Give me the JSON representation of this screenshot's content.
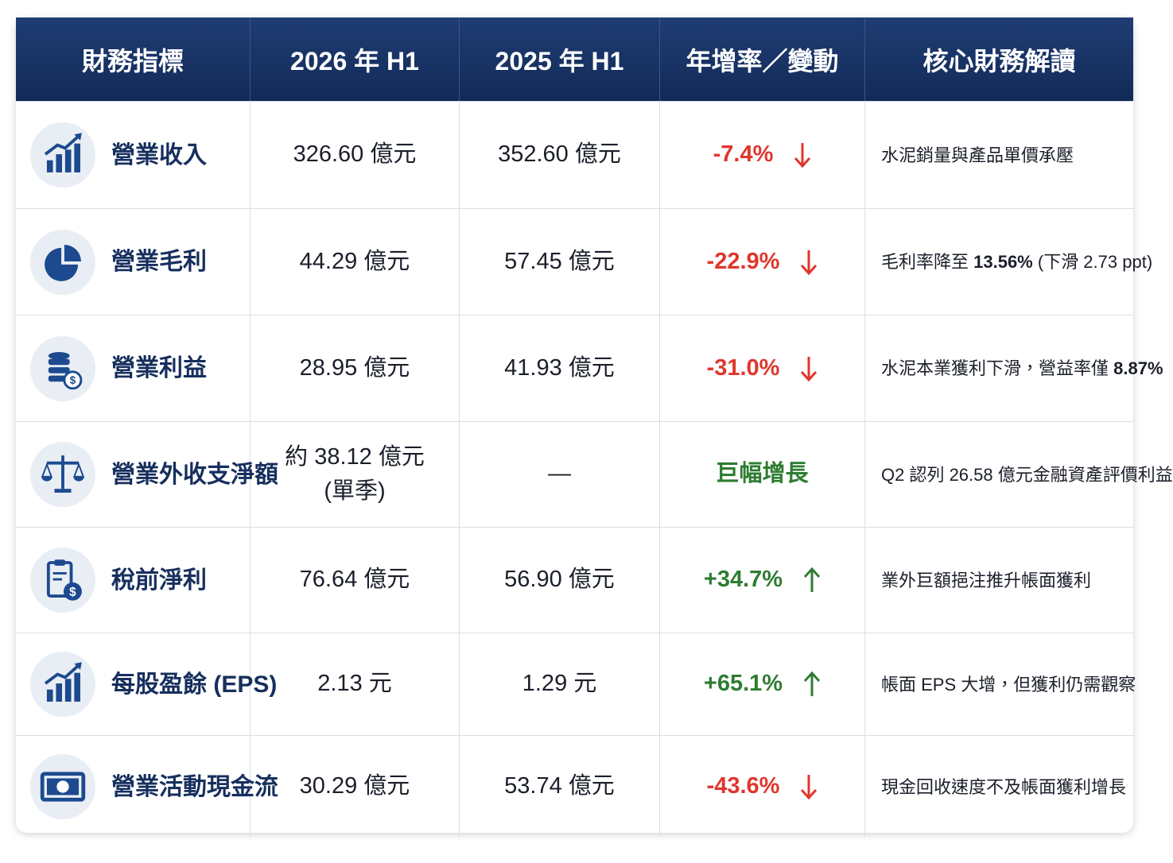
{
  "table": {
    "header": [
      "財務指標",
      "2026 年 H1",
      "2025 年 H1",
      "年增率／變動",
      "核心財務解讀"
    ],
    "rows": [
      {
        "metric": "營業收入",
        "h1_2026": "326.60 億元",
        "h1_2025": "352.60 億元",
        "change": "-7.4%",
        "trend": "down",
        "color": "#e0362c",
        "note": [
          {
            "text": "水泥銷量與產品單價承壓",
            "bold": false
          }
        ]
      },
      {
        "metric": "營業毛利",
        "h1_2026": "44.29 億元",
        "h1_2025": "57.45 億元",
        "change": "-22.9%",
        "trend": "down",
        "color": "#e0362c",
        "note": [
          {
            "text": "毛利率降至 ",
            "bold": false
          },
          {
            "text": "13.56%",
            "bold": true
          },
          {
            "text": " (下滑 2.73 ppt)",
            "bold": false
          }
        ]
      },
      {
        "metric": "營業利益",
        "h1_2026": "28.95 億元",
        "h1_2025": "41.93 億元",
        "change": "-31.0%",
        "trend": "down",
        "color": "#e0362c",
        "note": [
          {
            "text": "水泥本業獲利下滑，營益率僅 ",
            "bold": false
          },
          {
            "text": "8.87%",
            "bold": true
          }
        ]
      },
      {
        "metric": "營業外收支淨額",
        "h1_2026": "約 38.12 億元\n(單季)",
        "h1_2025": "—",
        "change": "巨幅增長",
        "trend": "none",
        "color": "#2e7d32",
        "note": [
          {
            "text": "Q2 認列 26.58 億元金融資產評價利益",
            "bold": false
          }
        ]
      },
      {
        "metric": "稅前淨利",
        "h1_2026": "76.64 億元",
        "h1_2025": "56.90 億元",
        "change": "+34.7%",
        "trend": "up",
        "color": "#2e7d32",
        "note": [
          {
            "text": "業外巨額挹注推升帳面獲利",
            "bold": false
          }
        ]
      },
      {
        "metric": "每股盈餘 (EPS)",
        "h1_2026": "2.13 元",
        "h1_2025": "1.29 元",
        "change": "+65.1%",
        "trend": "up",
        "color": "#2e7d32",
        "note": [
          {
            "text": "帳面 EPS 大增，但獲利仍需觀察",
            "bold": false
          }
        ]
      },
      {
        "metric": "營業活動現金流",
        "h1_2026": "30.29 億元",
        "h1_2025": "53.74 億元",
        "change": "-43.6%",
        "trend": "down",
        "color": "#e0362c",
        "note": [
          {
            "text": "現金回收速度不及帳面獲利增長",
            "bold": false
          }
        ]
      }
    ]
  }
}
